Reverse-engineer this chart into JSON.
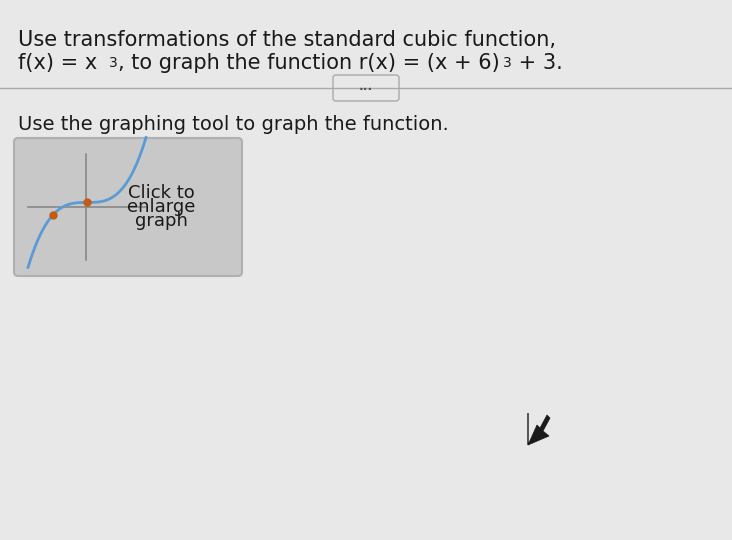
{
  "page_bg": "#e8e8e8",
  "title_line1": "Use transformations of the standard cubic function,",
  "title_line2_p1": "f(x) = x",
  "title_line2_sup1": "3",
  "title_line2_p2": ", to graph the function r(x) = (x + 6)",
  "title_line2_sup2": "3",
  "title_line2_p3": " + 3.",
  "subtitle": "Use the graphing tool to graph the function.",
  "button_text_line1": "Click to",
  "button_text_line2": "enlarge",
  "button_text_line3": "graph",
  "divider_dots": "...",
  "text_color": "#1a1a1a",
  "button_border": "#b0b0b0",
  "button_bg": "#c8c8c8",
  "graph_line_color": "#5b9bd5",
  "graph_dot_color": "#c55a11",
  "cursor_color": "#1a1a1a",
  "font_size_title": 15,
  "font_size_subtitle": 14,
  "font_size_button": 13,
  "font_size_sup": 10
}
